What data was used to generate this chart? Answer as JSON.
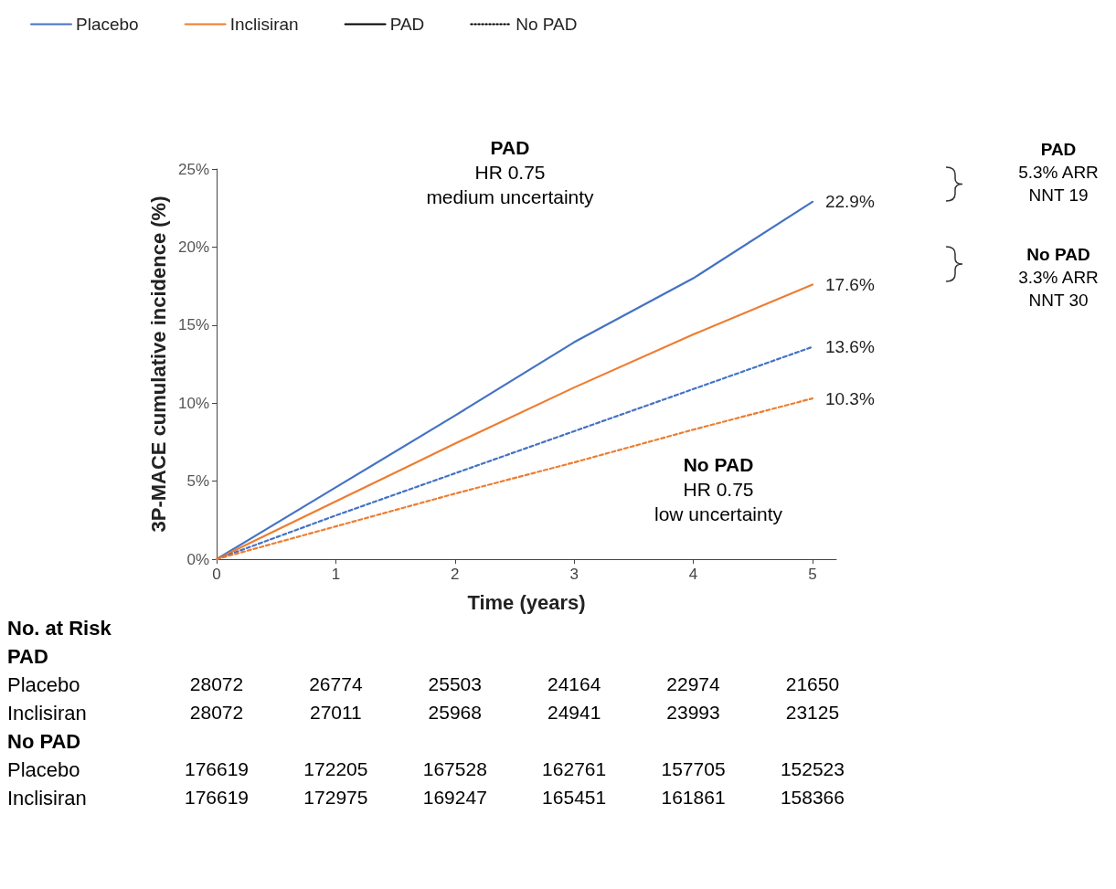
{
  "chart_data": {
    "type": "line",
    "xlabel": "Time (years)",
    "ylabel": "3P-MACE cumulative incidence (%)",
    "x": [
      0,
      1,
      2,
      3,
      4,
      5
    ],
    "series": [
      {
        "name": "Placebo",
        "color": "#4472c4",
        "line_style": "solid",
        "values": [
          0,
          4.6,
          9.2,
          13.9,
          18.0,
          22.9
        ],
        "value_labels": [
          null,
          null,
          null,
          null,
          null,
          "22.9%"
        ]
      },
      {
        "name": "Inclisiran",
        "color": "#ed7d31",
        "line_style": "solid",
        "values": [
          0,
          3.7,
          7.4,
          11.0,
          14.4,
          17.6
        ],
        "value_labels": [
          null,
          null,
          null,
          null,
          null,
          "17.6%"
        ]
      },
      {
        "name": "PAD",
        "color": "#000000",
        "line_style": "solid",
        "values": [
          null,
          null,
          null,
          null,
          null,
          null
        ]
      },
      {
        "name": "No PAD",
        "color": "#000000",
        "line_style": "dotted",
        "values": [
          null,
          null,
          null,
          null,
          null,
          null
        ]
      },
      {
        "color": "#4472c4",
        "line_style": "dashed",
        "values": [
          0,
          2.8,
          5.5,
          8.2,
          10.9,
          13.6
        ],
        "value_labels": [
          null,
          null,
          null,
          null,
          null,
          "13.6%"
        ]
      },
      {
        "color": "#ed7d31",
        "line_style": "dashed",
        "values": [
          0,
          2.1,
          4.2,
          6.2,
          8.3,
          10.3
        ],
        "value_labels": [
          null,
          null,
          null,
          null,
          null,
          "10.3%"
        ]
      }
    ],
    "xlim": [
      0,
      5.2
    ],
    "xticks": [
      0,
      1,
      2,
      3,
      4,
      5
    ],
    "ylim": [
      0,
      25
    ],
    "yticks": [
      {
        "value": 0,
        "label": "0%"
      },
      {
        "value": 5,
        "label": "5%"
      },
      {
        "value": 10,
        "label": "10%"
      },
      {
        "value": 15,
        "label": "15%"
      },
      {
        "value": 20,
        "label": "20%"
      },
      {
        "value": 25,
        "label": "25%"
      }
    ],
    "grid": false,
    "legend": "top left",
    "marker": "none",
    "annotations": [
      "PAD\nHR 0.75\nmedium uncertainty",
      "No PAD\nHR 0.75\nlow uncertainty",
      "PAD\n5.3% ARR\nNNT 19",
      "No PAD\n3.3% ARR\nNNT 30",
      "No. at Risk",
      "PAD",
      "Placebo\t28072\t26774\t25503\t24164\t22974\t21650",
      "Inclisiran\t28072\t27011\t25968\t24941\t23993\t23125",
      "No PAD",
      "Placebo\t176619\t172205\t167528\t162761\t157705\t152523",
      "Inclisiran\t176619\t172975\t169247\t165451\t161861\t158366"
    ]
  }
}
